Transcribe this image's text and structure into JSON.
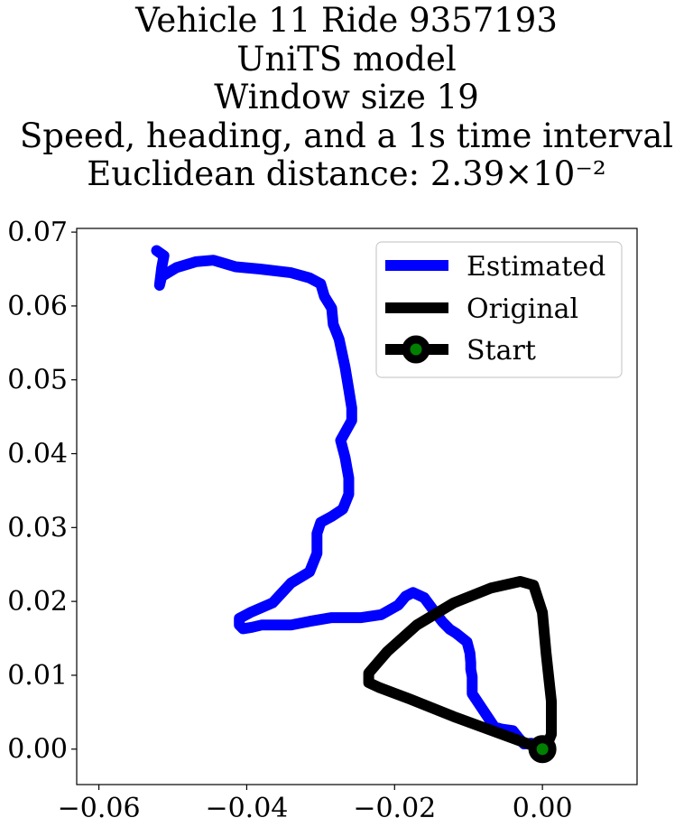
{
  "title_lines": [
    "Vehicle 11 Ride 9357193",
    "UniTS model",
    "Window size 19",
    "Speed, heading, and a 1s time interval",
    "Euclidean distance: 2.39×10⁻²"
  ],
  "chart_data": {
    "type": "line",
    "title": "Vehicle 11 Ride 9357193 / UniTS model / Window size 19 / Speed, heading, and a 1s time interval / Euclidean distance: 2.39×10⁻²",
    "xlabel": "",
    "ylabel": "",
    "xlim": [
      -0.063,
      0.0128
    ],
    "ylim": [
      -0.0048,
      0.0705
    ],
    "grid": false,
    "legend_position": "top-right",
    "x_ticks": [
      -0.06,
      -0.04,
      -0.02,
      0.0
    ],
    "x_tick_labels": [
      "−0.06",
      "−0.04",
      "−0.02",
      "0.00"
    ],
    "y_ticks": [
      0.0,
      0.01,
      0.02,
      0.03,
      0.04,
      0.05,
      0.06,
      0.07
    ],
    "y_tick_labels": [
      "0.00",
      "0.01",
      "0.02",
      "0.03",
      "0.04",
      "0.05",
      "0.06",
      "0.07"
    ],
    "series": [
      {
        "name": "Estimated",
        "color": "#0000ff",
        "x": [
          0.0,
          -0.0015,
          -0.0025,
          -0.0033,
          -0.004,
          -0.0055,
          -0.0065,
          -0.0075,
          -0.0095,
          -0.0095,
          -0.0097,
          -0.0097,
          -0.0098,
          -0.0102,
          -0.0117,
          -0.0125,
          -0.0135,
          -0.0145,
          -0.016,
          -0.0175,
          -0.0185,
          -0.0195,
          -0.0218,
          -0.0245,
          -0.0285,
          -0.0315,
          -0.034,
          -0.038,
          -0.0393,
          -0.0405,
          -0.041,
          -0.041,
          -0.0395,
          -0.0365,
          -0.034,
          -0.0315,
          -0.0305,
          -0.0305,
          -0.03,
          -0.0285,
          -0.027,
          -0.0262,
          -0.0262,
          -0.0267,
          -0.0273,
          -0.0258,
          -0.0258,
          -0.0262,
          -0.0267,
          -0.0275,
          -0.0283,
          -0.0285,
          -0.0295,
          -0.03,
          -0.0315,
          -0.034,
          -0.0382,
          -0.0415,
          -0.0445,
          -0.0468,
          -0.0495,
          -0.0515,
          -0.0518,
          -0.0515,
          -0.0512,
          -0.0522
        ],
        "y": [
          0.0,
          0.0008,
          0.0007,
          0.0016,
          0.0025,
          0.0027,
          0.003,
          0.0045,
          0.0075,
          0.0098,
          0.0108,
          0.0117,
          0.013,
          0.0145,
          0.0157,
          0.0162,
          0.0172,
          0.0185,
          0.0205,
          0.0212,
          0.0207,
          0.0195,
          0.0182,
          0.0178,
          0.0178,
          0.0173,
          0.0168,
          0.0168,
          0.0165,
          0.0163,
          0.0168,
          0.0177,
          0.0185,
          0.0198,
          0.0225,
          0.024,
          0.0265,
          0.0292,
          0.0307,
          0.0315,
          0.0325,
          0.0345,
          0.0367,
          0.0395,
          0.0418,
          0.0445,
          0.0462,
          0.0487,
          0.0517,
          0.0555,
          0.0575,
          0.0597,
          0.0613,
          0.063,
          0.0638,
          0.0645,
          0.065,
          0.0653,
          0.0662,
          0.066,
          0.0652,
          0.064,
          0.0628,
          0.0652,
          0.0668,
          0.0675
        ]
      },
      {
        "name": "Original",
        "color": "#000000",
        "x": [
          0.0,
          -0.006,
          -0.012,
          -0.018,
          -0.022,
          -0.0235,
          -0.0235,
          -0.021,
          -0.017,
          -0.012,
          -0.007,
          -0.003,
          -0.0012,
          0.0,
          0.0005,
          0.0012,
          0.0012,
          0.0005,
          0.0
        ],
        "y": [
          0.0,
          0.0022,
          0.0044,
          0.0068,
          0.0083,
          0.009,
          0.0103,
          0.0132,
          0.0168,
          0.0198,
          0.0218,
          0.0227,
          0.0222,
          0.0185,
          0.013,
          0.0065,
          0.002,
          0.0003,
          0.0
        ]
      }
    ],
    "start_marker": {
      "name": "Start",
      "x": 0.0,
      "y": 0.0,
      "edge_color": "#000000",
      "face_color": "#008000"
    }
  }
}
